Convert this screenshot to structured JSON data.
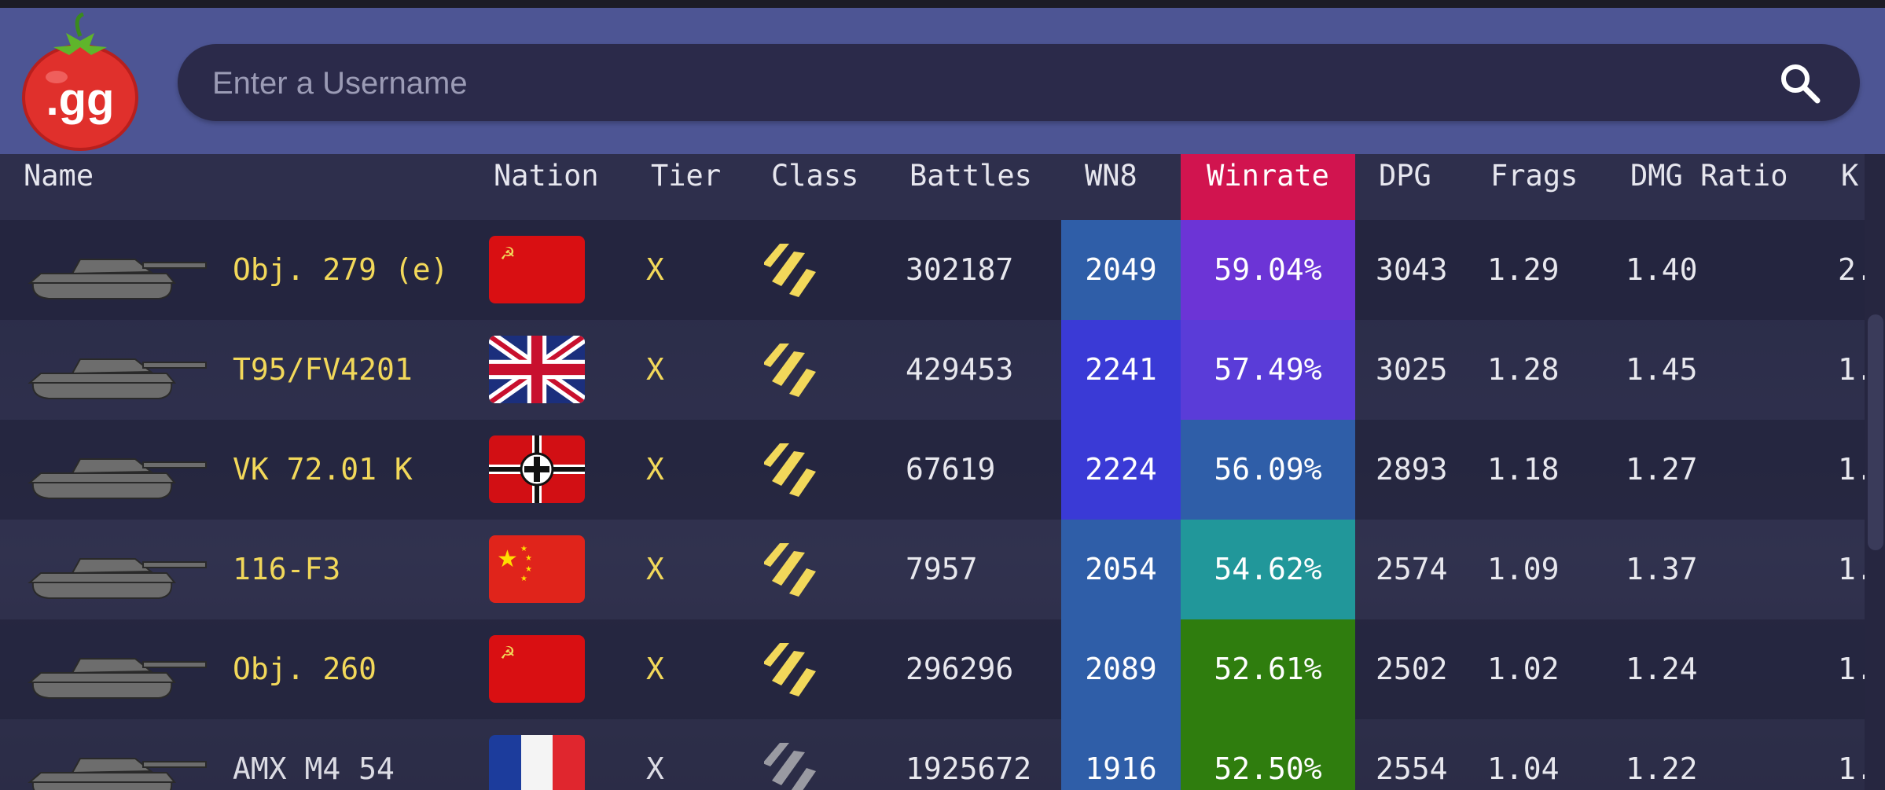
{
  "search": {
    "placeholder": "Enter a Username"
  },
  "logo": {
    "text": ".gg"
  },
  "columns": [
    "Name",
    "Nation",
    "Tier",
    "Class",
    "Battles",
    "WN8",
    "Winrate",
    "DPG",
    "Frags",
    "DMG Ratio",
    "K"
  ],
  "rows": [
    {
      "name": "Obj. 279 (e)",
      "nation": "USSR",
      "tier": "X",
      "class": "heavy-tank-icon",
      "battles": "302187",
      "wn8": "2049",
      "winrate": "59.04%",
      "dpg": "3043",
      "frags": "1.29",
      "dmg_ratio": "1.40",
      "k": "2.",
      "wn8_color": "#2f5ea8",
      "wr_color": "#6c34d6",
      "premium": true
    },
    {
      "name": "T95/FV4201",
      "nation": "UK",
      "tier": "X",
      "class": "heavy-tank-icon",
      "battles": "429453",
      "wn8": "2241",
      "winrate": "57.49%",
      "dpg": "3025",
      "frags": "1.28",
      "dmg_ratio": "1.45",
      "k": "1.",
      "wn8_color": "#3a3ad6",
      "wr_color": "#5a3cd8",
      "premium": true
    },
    {
      "name": "VK 72.01 K",
      "nation": "Germany",
      "tier": "X",
      "class": "heavy-tank-icon",
      "battles": "67619",
      "wn8": "2224",
      "winrate": "56.09%",
      "dpg": "2893",
      "frags": "1.18",
      "dmg_ratio": "1.27",
      "k": "1.",
      "wn8_color": "#3a3ad6",
      "wr_color": "#2f5ea8",
      "premium": true
    },
    {
      "name": "116-F3",
      "nation": "China",
      "tier": "X",
      "class": "heavy-tank-icon",
      "battles": "7957",
      "wn8": "2054",
      "winrate": "54.62%",
      "dpg": "2574",
      "frags": "1.09",
      "dmg_ratio": "1.37",
      "k": "1.",
      "wn8_color": "#2f5ea8",
      "wr_color": "#21979a",
      "premium": true
    },
    {
      "name": "Obj. 260",
      "nation": "USSR",
      "tier": "X",
      "class": "heavy-tank-icon",
      "battles": "296296",
      "wn8": "2089",
      "winrate": "52.61%",
      "dpg": "2502",
      "frags": "1.02",
      "dmg_ratio": "1.24",
      "k": "1.",
      "wn8_color": "#2f5ea8",
      "wr_color": "#2f7d0e",
      "premium": true
    },
    {
      "name": "AMX M4 54",
      "nation": "France",
      "tier": "X",
      "class": "heavy-tank-icon",
      "battles": "1925672",
      "wn8": "1916",
      "winrate": "52.50%",
      "dpg": "2554",
      "frags": "1.04",
      "dmg_ratio": "1.22",
      "k": "1.",
      "wn8_color": "#2f5ea8",
      "wr_color": "#2f7d0e",
      "premium": false
    }
  ],
  "colors": {
    "header_bg": "#4d5594",
    "winrate_header": "#d1144f",
    "premium_text": "#f2d85a"
  }
}
